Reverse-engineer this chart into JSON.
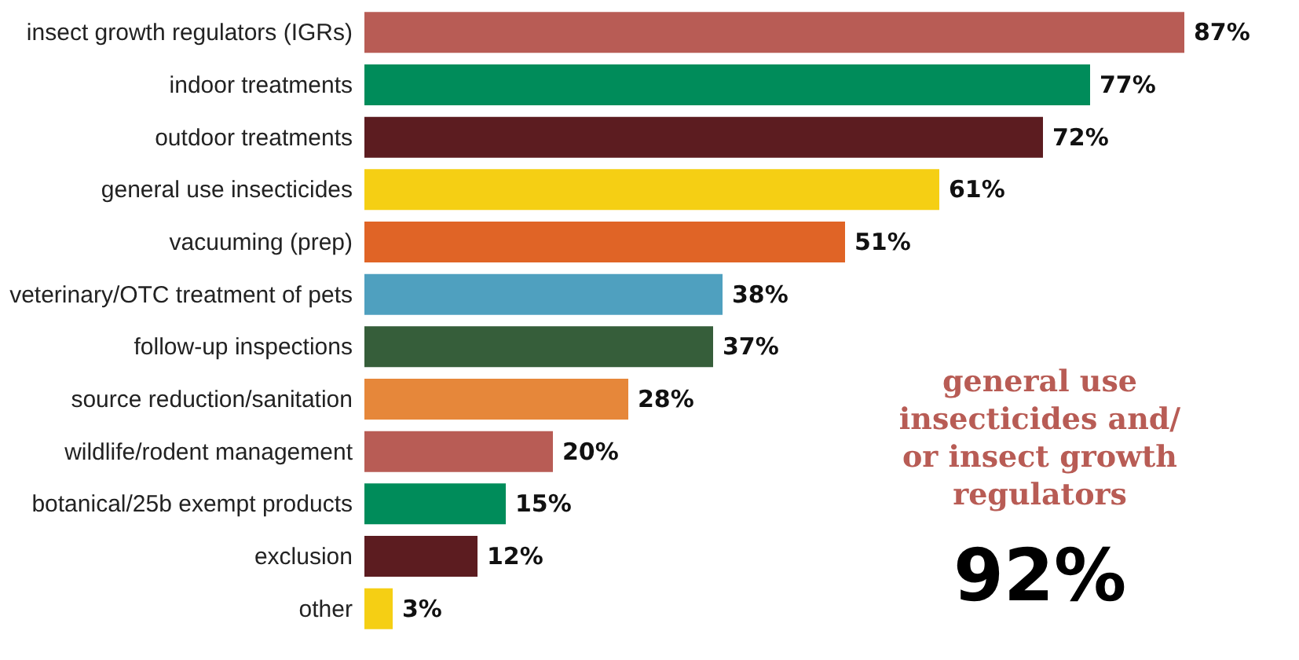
{
  "chart_data": {
    "type": "bar",
    "orientation": "horizontal",
    "data_labels": true,
    "tick_labels": "y",
    "categories": [
      "insect growth regulators (IGRs)",
      "indoor treatments",
      "outdoor treatments",
      "general use insecticides",
      "vacuuming (prep)",
      "veterinary/OTC treatment of pets",
      "follow-up inspections",
      "source reduction/sanitation",
      "wildlife/rodent management",
      "botanical/25b exempt products",
      "exclusion",
      "other"
    ],
    "values": [
      87,
      77,
      72,
      61,
      51,
      38,
      37,
      28,
      20,
      15,
      12,
      3
    ],
    "value_labels": [
      "87%",
      "77%",
      "72%",
      "61%",
      "51%",
      "38%",
      "37%",
      "28%",
      "20%",
      "15%",
      "12%",
      "3%"
    ],
    "colors": [
      "#b85c55",
      "#008c5a",
      "#5c1c20",
      "#f5cf14",
      "#e06426",
      "#4fa0bf",
      "#365e3a",
      "#e6873a",
      "#b85c55",
      "#008c5a",
      "#5c1c20",
      "#f5cf14"
    ],
    "annotations": [
      "general use\ninsecticides and/\nor insect growth\nregulators",
      "92%"
    ]
  }
}
